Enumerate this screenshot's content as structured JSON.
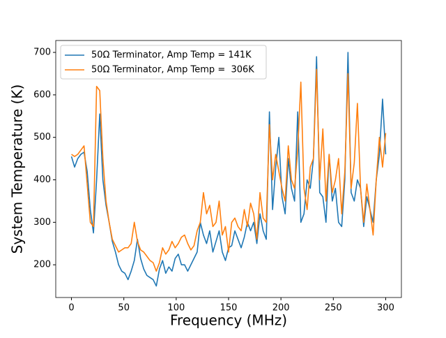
{
  "chart_data": {
    "type": "line",
    "xlabel": "Frequency (MHz)",
    "ylabel": "System Temperature (K)",
    "x": [
      0,
      3,
      6,
      9,
      12,
      15,
      18,
      21,
      24,
      27,
      30,
      33,
      36,
      39,
      42,
      45,
      48,
      51,
      54,
      57,
      60,
      63,
      66,
      69,
      72,
      75,
      78,
      81,
      84,
      87,
      90,
      93,
      96,
      99,
      102,
      105,
      108,
      111,
      114,
      117,
      120,
      123,
      126,
      129,
      132,
      135,
      138,
      141,
      144,
      147,
      150,
      153,
      156,
      159,
      162,
      165,
      168,
      171,
      174,
      177,
      180,
      183,
      186,
      189,
      192,
      195,
      198,
      201,
      204,
      207,
      210,
      213,
      216,
      219,
      222,
      225,
      228,
      231,
      234,
      237,
      240,
      243,
      246,
      249,
      252,
      255,
      258,
      261,
      264,
      267,
      270,
      273,
      276,
      279,
      282,
      285,
      288,
      291,
      294,
      297,
      300
    ],
    "series": [
      {
        "name": "50Ω Terminator, Amp Temp = 141K",
        "color": "#1f77b4",
        "values": [
          455,
          430,
          450,
          460,
          465,
          420,
          330,
          275,
          400,
          555,
          400,
          340,
          300,
          255,
          230,
          200,
          185,
          180,
          165,
          185,
          210,
          260,
          215,
          190,
          175,
          170,
          165,
          150,
          190,
          210,
          180,
          195,
          185,
          215,
          225,
          200,
          200,
          185,
          200,
          215,
          230,
          300,
          270,
          250,
          280,
          230,
          255,
          280,
          230,
          210,
          240,
          245,
          280,
          260,
          240,
          265,
          300,
          280,
          300,
          250,
          320,
          280,
          260,
          560,
          330,
          430,
          500,
          360,
          320,
          450,
          380,
          350,
          560,
          300,
          320,
          400,
          380,
          450,
          690,
          370,
          360,
          300,
          460,
          350,
          380,
          300,
          290,
          400,
          700,
          370,
          350,
          400,
          380,
          290,
          360,
          330,
          300,
          400,
          460,
          590,
          460
        ]
      },
      {
        "name": "50Ω Terminator, Amp Temp =  306K",
        "color": "#ff7f0e",
        "values": [
          460,
          455,
          460,
          470,
          480,
          390,
          300,
          290,
          620,
          610,
          450,
          350,
          300,
          260,
          245,
          230,
          235,
          240,
          240,
          250,
          300,
          255,
          235,
          230,
          220,
          210,
          205,
          185,
          205,
          240,
          225,
          235,
          255,
          240,
          250,
          265,
          270,
          250,
          235,
          245,
          280,
          300,
          370,
          320,
          340,
          290,
          300,
          350,
          270,
          290,
          230,
          300,
          310,
          290,
          280,
          330,
          290,
          345,
          320,
          260,
          370,
          310,
          300,
          530,
          400,
          460,
          420,
          380,
          350,
          480,
          400,
          380,
          470,
          630,
          380,
          330,
          430,
          450,
          660,
          400,
          520,
          350,
          460,
          370,
          400,
          450,
          320,
          420,
          650,
          380,
          440,
          580,
          380,
          300,
          390,
          330,
          270,
          400,
          500,
          430,
          510
        ]
      }
    ],
    "xlim": [
      -15,
      315
    ],
    "xticks": [
      0,
      50,
      100,
      150,
      200,
      250,
      300
    ],
    "ylim": [
      123,
      728
    ],
    "yticks": [
      200,
      300,
      400,
      500,
      600,
      700
    ],
    "legend": "upper left"
  }
}
